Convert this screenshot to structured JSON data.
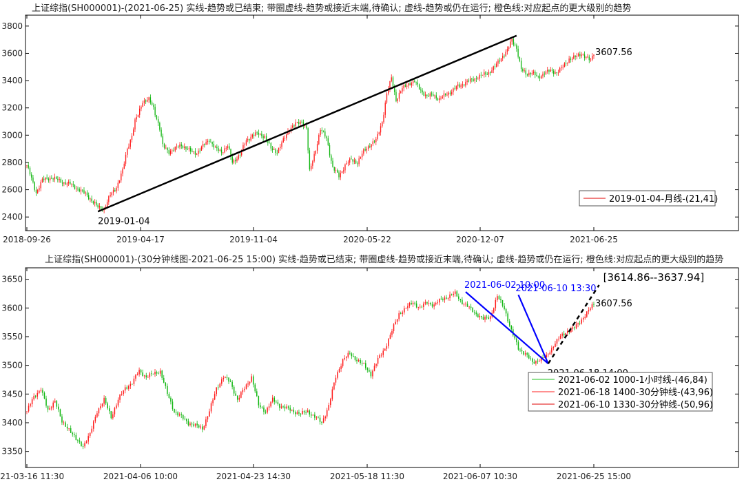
{
  "chart_data": [
    {
      "type": "candlestick",
      "title": "上证综指(SH000001)-(2021-06-25)  实线-趋势或已结束;  带圈虚线-趋势或接近末端,待确认;  虚线-趋势或仍在运行;  橙色线:对应起点的更大级别的趋势",
      "x_ticks": [
        "2018-09-26",
        "2019-04-17",
        "2019-11-04",
        "2020-05-22",
        "2020-12-07",
        "2021-06-25"
      ],
      "ylim": [
        2300,
        3880
      ],
      "y_ticks": [
        2400,
        2600,
        2800,
        3000,
        3200,
        3400,
        3600,
        3800
      ],
      "grid": false,
      "close_path": [
        [
          0,
          2780
        ],
        [
          3,
          2680
        ],
        [
          6,
          2580
        ],
        [
          10,
          2670
        ],
        [
          16,
          2690
        ],
        [
          22,
          2660
        ],
        [
          28,
          2640
        ],
        [
          34,
          2600
        ],
        [
          39,
          2560
        ],
        [
          46,
          2470
        ],
        [
          50,
          2460
        ],
        [
          54,
          2560
        ],
        [
          58,
          2620
        ],
        [
          62,
          2740
        ],
        [
          65,
          2900
        ],
        [
          68,
          3000
        ],
        [
          70,
          3100
        ],
        [
          72,
          3150
        ],
        [
          75,
          3250
        ],
        [
          79,
          3260
        ],
        [
          82,
          3200
        ],
        [
          86,
          3050
        ],
        [
          88,
          2920
        ],
        [
          92,
          2880
        ],
        [
          96,
          2900
        ],
        [
          100,
          2930
        ],
        [
          106,
          2880
        ],
        [
          110,
          2870
        ],
        [
          114,
          2920
        ],
        [
          118,
          2970
        ],
        [
          122,
          2900
        ],
        [
          126,
          2880
        ],
        [
          130,
          2920
        ],
        [
          133,
          2800
        ],
        [
          138,
          2860
        ],
        [
          142,
          2960
        ],
        [
          146,
          3000
        ],
        [
          150,
          3010
        ],
        [
          154,
          2990
        ],
        [
          158,
          2900
        ],
        [
          162,
          2880
        ],
        [
          166,
          2960
        ],
        [
          170,
          3050
        ],
        [
          174,
          3080
        ],
        [
          178,
          3100
        ],
        [
          181,
          3050
        ],
        [
          183,
          2730
        ],
        [
          187,
          2900
        ],
        [
          190,
          3040
        ],
        [
          194,
          2980
        ],
        [
          198,
          2760
        ],
        [
          202,
          2700
        ],
        [
          206,
          2780
        ],
        [
          210,
          2820
        ],
        [
          214,
          2800
        ],
        [
          218,
          2880
        ],
        [
          222,
          2930
        ],
        [
          226,
          2960
        ],
        [
          230,
          3100
        ],
        [
          233,
          3300
        ],
        [
          236,
          3420
        ],
        [
          239,
          3260
        ],
        [
          243,
          3340
        ],
        [
          247,
          3380
        ],
        [
          251,
          3390
        ],
        [
          255,
          3330
        ],
        [
          259,
          3280
        ],
        [
          263,
          3300
        ],
        [
          267,
          3260
        ],
        [
          271,
          3300
        ],
        [
          275,
          3320
        ],
        [
          279,
          3360
        ],
        [
          283,
          3380
        ],
        [
          287,
          3400
        ],
        [
          291,
          3420
        ],
        [
          295,
          3440
        ],
        [
          299,
          3460
        ],
        [
          303,
          3500
        ],
        [
          307,
          3570
        ],
        [
          311,
          3620
        ],
        [
          314,
          3700
        ],
        [
          317,
          3640
        ],
        [
          320,
          3480
        ],
        [
          323,
          3450
        ],
        [
          327,
          3460
        ],
        [
          331,
          3420
        ],
        [
          335,
          3460
        ],
        [
          339,
          3470
        ],
        [
          343,
          3460
        ],
        [
          347,
          3500
        ],
        [
          351,
          3560
        ],
        [
          355,
          3570
        ],
        [
          359,
          3600
        ],
        [
          363,
          3560
        ],
        [
          365,
          3545
        ],
        [
          367,
          3607.56
        ]
      ],
      "trendline": {
        "from": [
          46,
          2440
        ],
        "to": [
          317,
          3730
        ],
        "label": "2019-01-04"
      },
      "last_price_label": "3607.56",
      "legend": {
        "position": "lower-right",
        "entries": [
          "2019-01-04-月线-(21,41)"
        ]
      }
    },
    {
      "type": "candlestick",
      "title": "上证综指(SH000001)-(30分钟线图-2021-06-25 15:00)  实线-趋势或已结束;  带圈虚线-趋势或接近末端,待确认;  虚线-趋势或仍在运行;  橙色线:对应起点的更大级别的趋势",
      "x_ticks": [
        "2021-03-16 11:30",
        "2021-04-06 10:00",
        "2021-04-23 14:30",
        "2021-05-18 11:30",
        "2021-06-07 10:30",
        "2021-06-25 15:00"
      ],
      "ylim": [
        3322,
        3670
      ],
      "y_ticks": [
        3350,
        3400,
        3450,
        3500,
        3550,
        3600,
        3650
      ],
      "grid": false,
      "close_path": [
        [
          0,
          3420
        ],
        [
          4,
          3445
        ],
        [
          8,
          3460
        ],
        [
          12,
          3420
        ],
        [
          16,
          3440
        ],
        [
          20,
          3400
        ],
        [
          24,
          3390
        ],
        [
          28,
          3370
        ],
        [
          32,
          3360
        ],
        [
          36,
          3380
        ],
        [
          40,
          3420
        ],
        [
          44,
          3440
        ],
        [
          48,
          3410
        ],
        [
          52,
          3440
        ],
        [
          56,
          3460
        ],
        [
          60,
          3470
        ],
        [
          64,
          3490
        ],
        [
          68,
          3480
        ],
        [
          72,
          3485
        ],
        [
          76,
          3490
        ],
        [
          80,
          3450
        ],
        [
          84,
          3420
        ],
        [
          88,
          3410
        ],
        [
          92,
          3400
        ],
        [
          96,
          3395
        ],
        [
          100,
          3390
        ],
        [
          104,
          3420
        ],
        [
          108,
          3460
        ],
        [
          112,
          3480
        ],
        [
          116,
          3470
        ],
        [
          120,
          3440
        ],
        [
          124,
          3460
        ],
        [
          128,
          3480
        ],
        [
          132,
          3430
        ],
        [
          136,
          3420
        ],
        [
          140,
          3440
        ],
        [
          144,
          3430
        ],
        [
          148,
          3425
        ],
        [
          152,
          3420
        ],
        [
          156,
          3415
        ],
        [
          160,
          3420
        ],
        [
          164,
          3410
        ],
        [
          168,
          3400
        ],
        [
          172,
          3430
        ],
        [
          176,
          3480
        ],
        [
          180,
          3510
        ],
        [
          184,
          3520
        ],
        [
          188,
          3510
        ],
        [
          192,
          3500
        ],
        [
          196,
          3485
        ],
        [
          200,
          3510
        ],
        [
          204,
          3530
        ],
        [
          208,
          3560
        ],
        [
          212,
          3590
        ],
        [
          216,
          3600
        ],
        [
          220,
          3610
        ],
        [
          224,
          3600
        ],
        [
          228,
          3610
        ],
        [
          232,
          3605
        ],
        [
          236,
          3615
        ],
        [
          240,
          3620
        ],
        [
          244,
          3625
        ],
        [
          248,
          3610
        ],
        [
          252,
          3600
        ],
        [
          256,
          3590
        ],
        [
          260,
          3580
        ],
        [
          264,
          3585
        ],
        [
          268,
          3620
        ],
        [
          272,
          3600
        ],
        [
          276,
          3560
        ],
        [
          280,
          3530
        ],
        [
          284,
          3520
        ],
        [
          288,
          3505
        ],
        [
          292,
          3510
        ],
        [
          296,
          3515
        ],
        [
          300,
          3535
        ],
        [
          304,
          3550
        ],
        [
          308,
          3560
        ],
        [
          312,
          3565
        ],
        [
          316,
          3580
        ],
        [
          320,
          3595
        ],
        [
          323,
          3607.56
        ]
      ],
      "trend_lines": [
        {
          "from": [
            250,
            3628
          ],
          "to": [
            297,
            3503
          ],
          "label": "2021-06-02 10:00",
          "color": "#0000ff"
        },
        {
          "from": [
            280,
            3623
          ],
          "to": [
            297,
            3503
          ],
          "label": "2021-06-10 13:30",
          "color": "#0000ff"
        }
      ],
      "projection_line": {
        "from": [
          297,
          3503
        ],
        "to": [
          326,
          3640
        ],
        "label": "[3614.86--3637.94]",
        "style": "dashed"
      },
      "point_label": {
        "at": [
          297,
          3503
        ],
        "text": "2021-06-18 14:00"
      },
      "last_price_label": "3607.56",
      "legend": {
        "position": "lower-right",
        "entries": [
          {
            "text": "2021-06-02 1000-1小时线-(46,84)",
            "color": "#22c322"
          },
          {
            "text": "2021-06-18 1400-30分钟线-(43,96)",
            "color": "#ff2020"
          },
          {
            "text": "2021-06-10 1330-30分钟线-(50,96)",
            "color": "#e00000"
          }
        ]
      }
    }
  ]
}
